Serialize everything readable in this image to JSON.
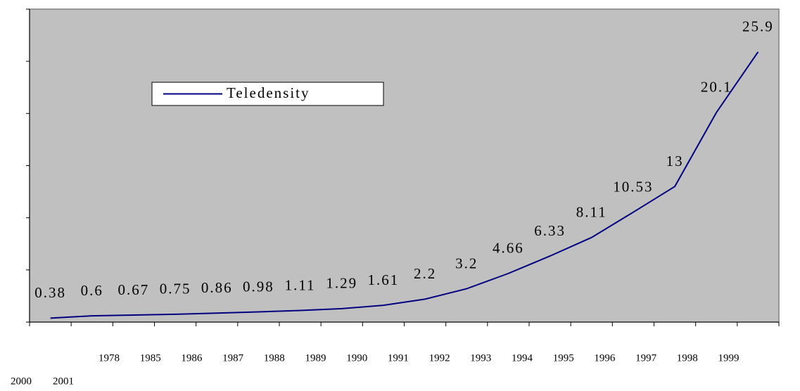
{
  "chart_data": {
    "type": "line",
    "categories": [
      "1978",
      "1985",
      "1986",
      "1987",
      "1988",
      "1989",
      "1990",
      "1991",
      "1992",
      "1993",
      "1994",
      "1995",
      "1996",
      "1997",
      "1998",
      "1999",
      "2000",
      "2001"
    ],
    "series": [
      {
        "name": "Teledensity",
        "color": "#000080",
        "values": [
          0.38,
          0.6,
          0.67,
          0.75,
          0.86,
          0.98,
          1.11,
          1.29,
          1.61,
          2.2,
          3.2,
          4.66,
          6.33,
          8.11,
          10.53,
          13,
          20.1,
          25.9
        ]
      }
    ],
    "ylim": [
      0,
      30
    ],
    "yticks": [
      0,
      5,
      10,
      15,
      20,
      25,
      30
    ],
    "background": "#c0c0c0"
  }
}
